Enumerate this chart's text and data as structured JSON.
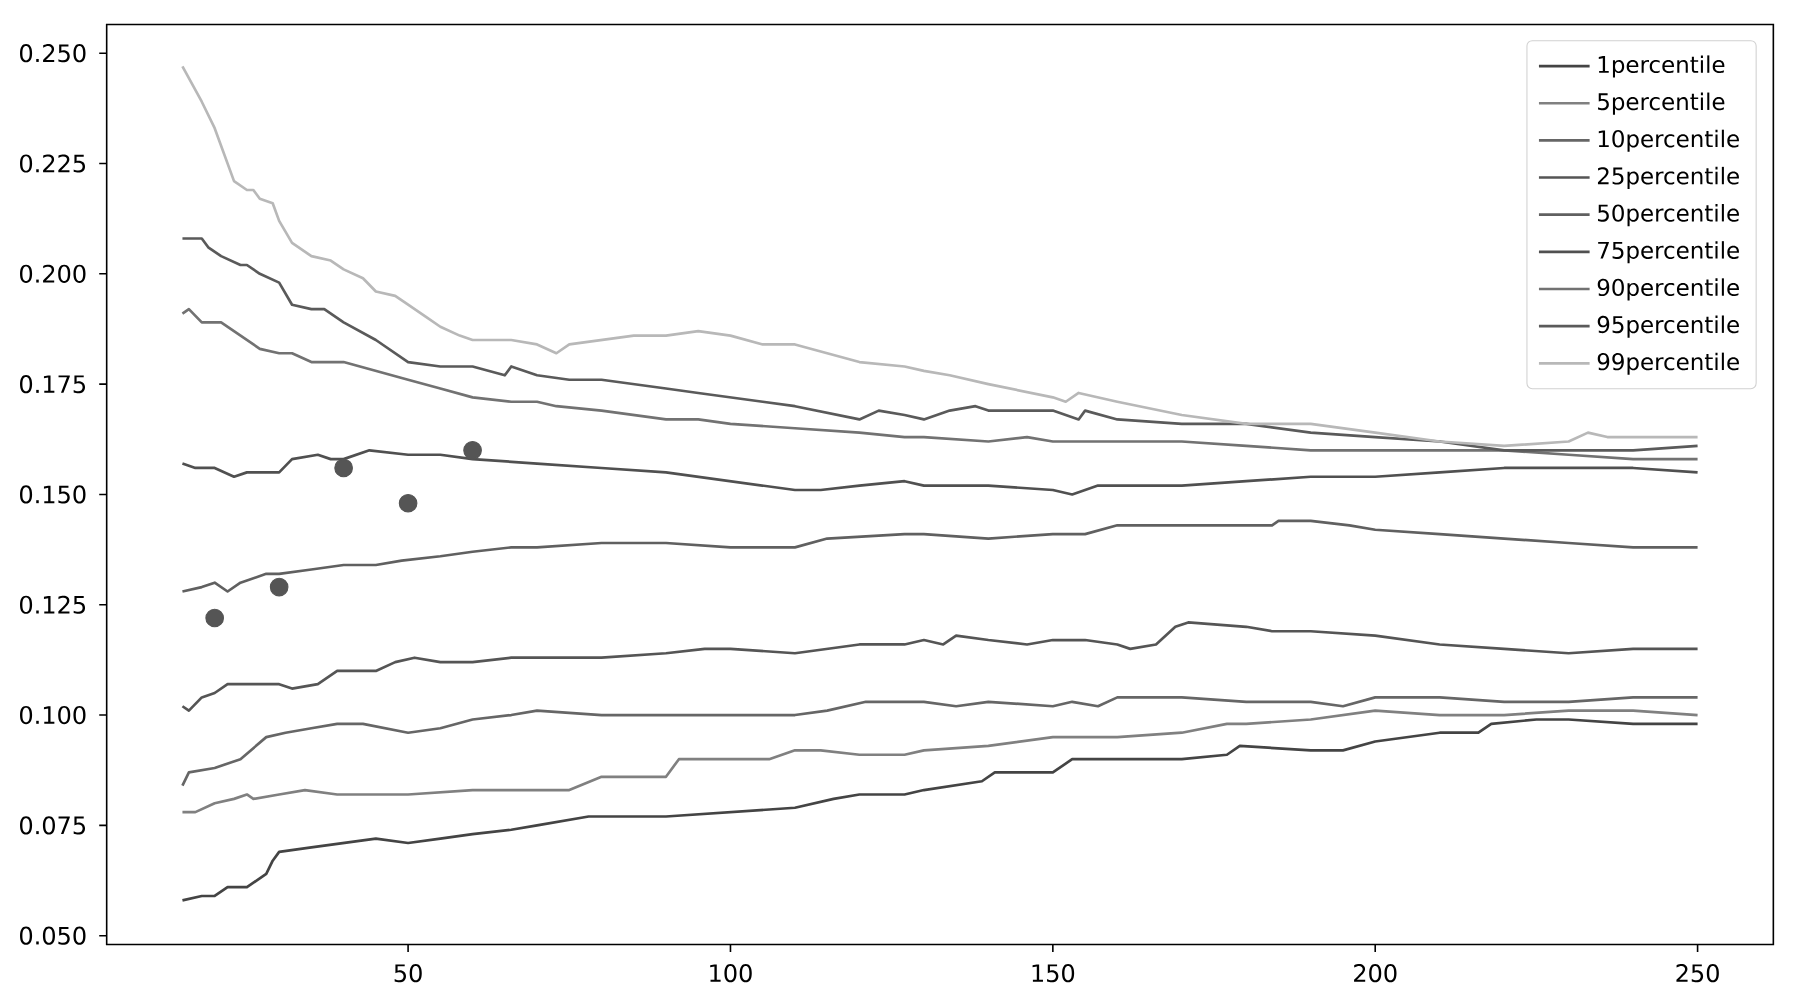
{
  "chart_data": {
    "type": "line",
    "xlim": [
      3.25,
      261.75
    ],
    "ylim": [
      0.048,
      0.2565
    ],
    "xticks": [
      50,
      100,
      150,
      200,
      250
    ],
    "yticks": [
      {
        "value": 0.05,
        "label": "0.050"
      },
      {
        "value": 0.075,
        "label": "0.075"
      },
      {
        "value": 0.1,
        "label": "0.100"
      },
      {
        "value": 0.125,
        "label": "0.125"
      },
      {
        "value": 0.15,
        "label": "0.150"
      },
      {
        "value": 0.175,
        "label": "0.175"
      },
      {
        "value": 0.2,
        "label": "0.200"
      },
      {
        "value": 0.225,
        "label": "0.225"
      },
      {
        "value": 0.25,
        "label": "0.250"
      }
    ],
    "legend": "top right",
    "series": [
      {
        "name": "1percentile",
        "color": "#444444",
        "x": [
          15,
          18,
          20,
          22,
          25,
          28,
          29,
          30,
          35,
          40,
          45,
          50,
          55,
          60,
          66,
          70,
          78,
          90,
          100,
          110,
          116,
          120,
          127,
          130,
          139,
          141,
          150,
          153,
          160,
          170,
          177,
          179,
          190,
          195,
          200,
          210,
          216,
          218,
          225,
          230,
          240,
          250
        ],
        "values": [
          0.058,
          0.059,
          0.059,
          0.061,
          0.061,
          0.064,
          0.067,
          0.069,
          0.07,
          0.071,
          0.072,
          0.071,
          0.072,
          0.073,
          0.074,
          0.075,
          0.077,
          0.077,
          0.078,
          0.079,
          0.081,
          0.082,
          0.082,
          0.083,
          0.085,
          0.087,
          0.087,
          0.09,
          0.09,
          0.09,
          0.091,
          0.093,
          0.092,
          0.092,
          0.094,
          0.096,
          0.096,
          0.098,
          0.099,
          0.099,
          0.098,
          0.098
        ]
      },
      {
        "name": "5percentile",
        "color": "#808080",
        "x": [
          15,
          17,
          20,
          23,
          25,
          26,
          30,
          34,
          39,
          45,
          50,
          60,
          70,
          75,
          80,
          90,
          92,
          100,
          106,
          110,
          114,
          120,
          127,
          130,
          140,
          150,
          160,
          170,
          177,
          180,
          190,
          200,
          210,
          220,
          230,
          234,
          240,
          250
        ],
        "values": [
          0.078,
          0.078,
          0.08,
          0.081,
          0.082,
          0.081,
          0.082,
          0.083,
          0.082,
          0.082,
          0.082,
          0.083,
          0.083,
          0.083,
          0.086,
          0.086,
          0.09,
          0.09,
          0.09,
          0.092,
          0.092,
          0.091,
          0.091,
          0.092,
          0.093,
          0.095,
          0.095,
          0.096,
          0.098,
          0.098,
          0.099,
          0.101,
          0.1,
          0.1,
          0.101,
          0.101,
          0.101,
          0.1
        ]
      },
      {
        "name": "10percentile",
        "color": "#666666",
        "x": [
          15,
          16,
          20,
          24,
          28,
          31,
          35,
          39,
          43,
          50,
          55,
          60,
          66,
          70,
          80,
          90,
          100,
          110,
          115,
          121,
          127,
          130,
          135,
          140,
          150,
          153,
          157,
          160,
          165,
          170,
          180,
          190,
          195,
          200,
          210,
          220,
          230,
          240,
          250
        ],
        "values": [
          0.084,
          0.087,
          0.088,
          0.09,
          0.095,
          0.096,
          0.097,
          0.098,
          0.098,
          0.096,
          0.097,
          0.099,
          0.1,
          0.101,
          0.1,
          0.1,
          0.1,
          0.1,
          0.101,
          0.103,
          0.103,
          0.103,
          0.102,
          0.103,
          0.102,
          0.103,
          0.102,
          0.104,
          0.104,
          0.104,
          0.103,
          0.103,
          0.102,
          0.104,
          0.104,
          0.103,
          0.103,
          0.104,
          0.104
        ]
      },
      {
        "name": "25percentile",
        "color": "#555555",
        "x": [
          15,
          16,
          18,
          20,
          22,
          24,
          30,
          32,
          36,
          39,
          45,
          48,
          51,
          55,
          60,
          66,
          70,
          80,
          90,
          96,
          100,
          110,
          120,
          127,
          130,
          133,
          135,
          140,
          146,
          150,
          155,
          160,
          162,
          166,
          169,
          171,
          180,
          184,
          190,
          200,
          210,
          220,
          230,
          240,
          246,
          250
        ],
        "values": [
          0.102,
          0.101,
          0.104,
          0.105,
          0.107,
          0.107,
          0.107,
          0.106,
          0.107,
          0.11,
          0.11,
          0.112,
          0.113,
          0.112,
          0.112,
          0.113,
          0.113,
          0.113,
          0.114,
          0.115,
          0.115,
          0.114,
          0.116,
          0.116,
          0.117,
          0.116,
          0.118,
          0.117,
          0.116,
          0.117,
          0.117,
          0.116,
          0.115,
          0.116,
          0.12,
          0.121,
          0.12,
          0.119,
          0.119,
          0.118,
          0.116,
          0.115,
          0.114,
          0.115,
          0.115,
          0.115
        ]
      },
      {
        "name": "50percentile",
        "color": "#606060",
        "x": [
          15,
          18,
          20,
          22,
          24,
          28,
          30,
          35,
          40,
          45,
          49,
          55,
          60,
          66,
          70,
          80,
          85,
          90,
          100,
          110,
          115,
          127,
          130,
          140,
          150,
          155,
          160,
          170,
          180,
          184,
          185,
          190,
          196,
          200,
          210,
          220,
          230,
          240,
          250
        ],
        "values": [
          0.128,
          0.129,
          0.13,
          0.128,
          0.13,
          0.132,
          0.132,
          0.133,
          0.134,
          0.134,
          0.135,
          0.136,
          0.137,
          0.138,
          0.138,
          0.139,
          0.139,
          0.139,
          0.138,
          0.138,
          0.14,
          0.141,
          0.141,
          0.14,
          0.141,
          0.141,
          0.143,
          0.143,
          0.143,
          0.143,
          0.144,
          0.144,
          0.143,
          0.142,
          0.141,
          0.14,
          0.139,
          0.138,
          0.138
        ]
      },
      {
        "name": "75percentile",
        "color": "#505050",
        "x": [
          15,
          17,
          20,
          23,
          25,
          30,
          32,
          36,
          38,
          40,
          44,
          50,
          55,
          60,
          70,
          80,
          90,
          100,
          110,
          114,
          120,
          127,
          130,
          140,
          150,
          153,
          157,
          160,
          170,
          180,
          190,
          200,
          210,
          220,
          230,
          240,
          250
        ],
        "values": [
          0.157,
          0.156,
          0.156,
          0.154,
          0.155,
          0.155,
          0.158,
          0.159,
          0.158,
          0.158,
          0.16,
          0.159,
          0.159,
          0.158,
          0.157,
          0.156,
          0.155,
          0.153,
          0.151,
          0.151,
          0.152,
          0.153,
          0.152,
          0.152,
          0.151,
          0.15,
          0.152,
          0.152,
          0.152,
          0.153,
          0.154,
          0.154,
          0.155,
          0.156,
          0.156,
          0.156,
          0.155
        ]
      },
      {
        "name": "90percentile",
        "color": "#727272",
        "x": [
          15,
          16,
          18,
          21,
          24,
          27,
          30,
          32,
          35,
          40,
          45,
          50,
          55,
          60,
          66,
          70,
          73,
          80,
          90,
          95,
          100,
          110,
          120,
          127,
          130,
          140,
          146,
          150,
          160,
          170,
          180,
          190,
          200,
          210,
          220,
          230,
          240,
          250
        ],
        "values": [
          0.191,
          0.192,
          0.189,
          0.189,
          0.186,
          0.183,
          0.182,
          0.182,
          0.18,
          0.18,
          0.178,
          0.176,
          0.174,
          0.172,
          0.171,
          0.171,
          0.17,
          0.169,
          0.167,
          0.167,
          0.166,
          0.165,
          0.164,
          0.163,
          0.163,
          0.162,
          0.163,
          0.162,
          0.162,
          0.162,
          0.161,
          0.16,
          0.16,
          0.16,
          0.16,
          0.159,
          0.158,
          0.158
        ]
      },
      {
        "name": "95percentile",
        "color": "#5a5a5a",
        "x": [
          15,
          18,
          19,
          21,
          24,
          25,
          27,
          30,
          32,
          35,
          37,
          40,
          45,
          50,
          55,
          60,
          65,
          66,
          70,
          75,
          80,
          90,
          95,
          100,
          105,
          110,
          120,
          123,
          127,
          130,
          134,
          138,
          140,
          150,
          154,
          155,
          160,
          170,
          180,
          190,
          200,
          210,
          220,
          230,
          240,
          250
        ],
        "values": [
          0.208,
          0.208,
          0.206,
          0.204,
          0.202,
          0.202,
          0.2,
          0.198,
          0.193,
          0.192,
          0.192,
          0.189,
          0.185,
          0.18,
          0.179,
          0.179,
          0.177,
          0.179,
          0.177,
          0.176,
          0.176,
          0.174,
          0.173,
          0.172,
          0.171,
          0.17,
          0.167,
          0.169,
          0.168,
          0.167,
          0.169,
          0.17,
          0.169,
          0.169,
          0.167,
          0.169,
          0.167,
          0.166,
          0.166,
          0.164,
          0.163,
          0.162,
          0.16,
          0.16,
          0.16,
          0.161
        ]
      },
      {
        "name": "99percentile",
        "color": "#b8b8b8",
        "x": [
          15,
          18,
          20,
          23,
          25,
          26,
          27,
          29,
          30,
          32,
          35,
          38,
          40,
          43,
          45,
          48,
          50,
          53,
          55,
          58,
          60,
          66,
          70,
          73,
          75,
          80,
          85,
          90,
          95,
          100,
          105,
          110,
          115,
          120,
          127,
          130,
          134,
          140,
          150,
          152,
          154,
          160,
          170,
          180,
          190,
          200,
          210,
          220,
          230,
          233,
          236,
          240,
          250
        ],
        "values": [
          0.247,
          0.239,
          0.233,
          0.221,
          0.219,
          0.219,
          0.217,
          0.216,
          0.212,
          0.207,
          0.204,
          0.203,
          0.201,
          0.199,
          0.196,
          0.195,
          0.193,
          0.19,
          0.188,
          0.186,
          0.185,
          0.185,
          0.184,
          0.182,
          0.184,
          0.185,
          0.186,
          0.186,
          0.187,
          0.186,
          0.184,
          0.184,
          0.182,
          0.18,
          0.179,
          0.178,
          0.177,
          0.175,
          0.172,
          0.171,
          0.173,
          0.171,
          0.168,
          0.166,
          0.166,
          0.164,
          0.162,
          0.161,
          0.162,
          0.164,
          0.163,
          0.163,
          0.163
        ]
      },
      {
        "type": "scatter",
        "marker": "circle",
        "color": "#555555",
        "x": [
          20,
          30,
          40,
          50,
          60
        ],
        "values": [
          0.122,
          0.129,
          0.156,
          0.148,
          0.16
        ]
      }
    ]
  }
}
